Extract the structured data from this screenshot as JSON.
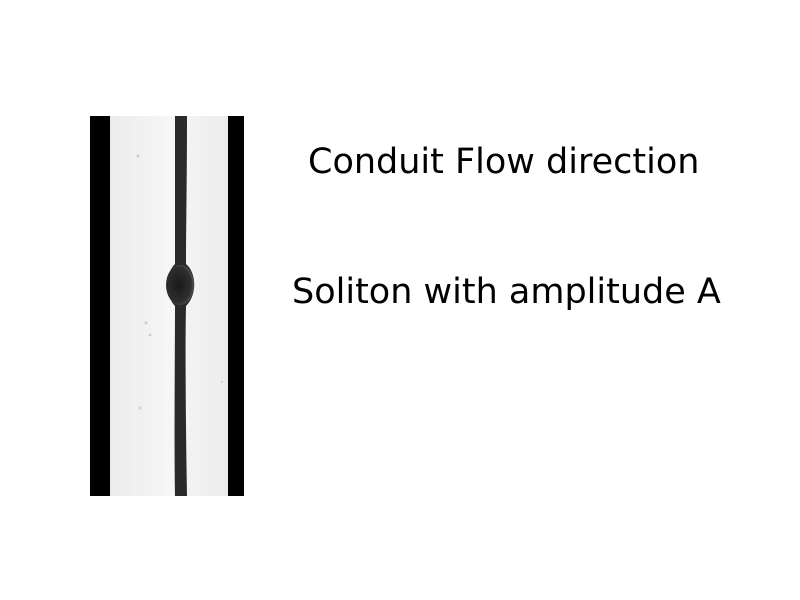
{
  "labels": {
    "flow_direction": "Conduit Flow direction",
    "soliton": "Soliton with amplitude A"
  },
  "colors": {
    "background": "#ffffff",
    "conduit_wall": "#000000",
    "fluid_background": "#f2f2f2",
    "conduit_stream": "#2a2a2a"
  }
}
